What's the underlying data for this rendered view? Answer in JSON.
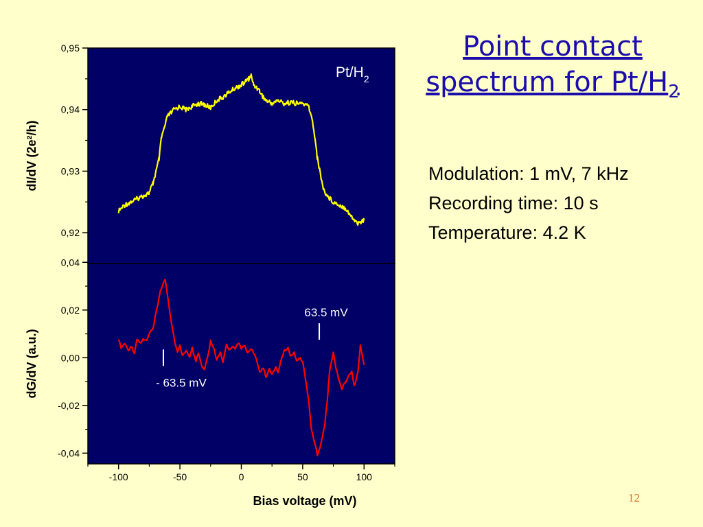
{
  "slide": {
    "title_line1": "Point contact",
    "title_line2_main": "spectrum for Pt/H",
    "title_line2_sub": "2",
    "info_lines": [
      "Modulation: 1 mV, 7 kHz",
      "Recording time: 10 s",
      "Temperature: 4.2 K"
    ],
    "page_number": "12"
  },
  "colors": {
    "slide_background": "#ffffcc",
    "plot_background": "#000066",
    "title": "#1a0dab",
    "upper_trace": "#ffff00",
    "lower_trace": "#ff0000",
    "page_number": "#e07020"
  },
  "chart_data": [
    {
      "type": "line",
      "panel": "upper",
      "annotation_main": "Pt/H",
      "annotation_sub": "2",
      "ylabel": "dI/dV (2e²/h)",
      "ylim": [
        0.915,
        0.95
      ],
      "yticks": [
        "0,92",
        "0,93",
        "0,94",
        "0,95"
      ],
      "ytick_values": [
        0.92,
        0.93,
        0.94,
        0.95
      ],
      "xlim": [
        -125,
        125
      ],
      "series": [
        {
          "color": "#ffff00",
          "x": [
            -100,
            -95,
            -90,
            -85,
            -80,
            -75,
            -72,
            -70,
            -67,
            -65,
            -62,
            -60,
            -57,
            -55,
            -50,
            -45,
            -40,
            -35,
            -30,
            -25,
            -20,
            -15,
            -10,
            -5,
            0,
            3,
            6,
            8,
            10,
            13,
            15,
            18,
            20,
            25,
            30,
            35,
            40,
            45,
            50,
            55,
            58,
            60,
            62,
            65,
            67,
            70,
            75,
            80,
            85,
            90,
            95,
            100
          ],
          "values": [
            0.9235,
            0.9245,
            0.925,
            0.9255,
            0.926,
            0.9265,
            0.928,
            0.9295,
            0.932,
            0.9355,
            0.9375,
            0.939,
            0.9395,
            0.94,
            0.9405,
            0.94,
            0.9405,
            0.941,
            0.9408,
            0.9403,
            0.9415,
            0.942,
            0.9428,
            0.9435,
            0.944,
            0.9445,
            0.945,
            0.9455,
            0.944,
            0.9435,
            0.943,
            0.942,
            0.9415,
            0.941,
            0.9415,
            0.941,
            0.9412,
            0.941,
            0.941,
            0.9405,
            0.938,
            0.9355,
            0.932,
            0.929,
            0.927,
            0.926,
            0.925,
            0.9245,
            0.924,
            0.9225,
            0.9215,
            0.922
          ]
        }
      ]
    },
    {
      "type": "line",
      "panel": "lower",
      "ylabel": "dG/dV (a.u.)",
      "xlabel": "Bias voltage (mV)",
      "ylim": [
        -0.0445,
        0.0395
      ],
      "yticks": [
        "-0,04",
        "-0,02",
        "0,00",
        "0,02",
        "0,04"
      ],
      "ytick_values": [
        -0.04,
        -0.02,
        0.0,
        0.02,
        0.04
      ],
      "xlim": [
        -125,
        125
      ],
      "xticks": [
        "-100",
        "-50",
        "0",
        "50",
        "100"
      ],
      "xtick_values": [
        -100,
        -50,
        0,
        50,
        100
      ],
      "annotations": [
        {
          "text": "- 63.5 mV",
          "x": -63.5,
          "y": -0.0025,
          "marker_y": 0.0
        },
        {
          "text": "63.5 mV",
          "x": 63.5,
          "y": 0.0165,
          "marker_y": 0.011
        }
      ],
      "series": [
        {
          "color": "#ff0000",
          "x": [
            -100,
            -98,
            -95,
            -92,
            -90,
            -87,
            -85,
            -82,
            -80,
            -77,
            -75,
            -72,
            -70,
            -68,
            -66,
            -64,
            -62,
            -60,
            -58,
            -56,
            -54,
            -52,
            -50,
            -48,
            -45,
            -42,
            -40,
            -37,
            -35,
            -32,
            -30,
            -27,
            -25,
            -22,
            -20,
            -17,
            -15,
            -12,
            -10,
            -7,
            -5,
            -2,
            0,
            3,
            5,
            8,
            10,
            13,
            15,
            18,
            20,
            23,
            25,
            28,
            30,
            33,
            35,
            38,
            40,
            43,
            45,
            48,
            50,
            52,
            55,
            57,
            60,
            62,
            64,
            66,
            68,
            70,
            72,
            75,
            77,
            80,
            82,
            85,
            87,
            90,
            92,
            95,
            97,
            100
          ],
          "values": [
            0.008,
            0.004,
            0.006,
            0.003,
            0.005,
            0.002,
            0.008,
            0.006,
            0.008,
            0.007,
            0.01,
            0.012,
            0.018,
            0.022,
            0.028,
            0.031,
            0.033,
            0.026,
            0.018,
            0.012,
            0.006,
            0.002,
            0.005,
            0.001,
            0.003,
            0.0,
            0.004,
            -0.002,
            0.002,
            -0.004,
            -0.005,
            0.001,
            0.007,
            0.003,
            -0.001,
            0.002,
            -0.002,
            0.006,
            0.003,
            0.005,
            0.004,
            0.006,
            0.004,
            0.005,
            0.002,
            0.004,
            0.002,
            -0.002,
            -0.006,
            -0.004,
            -0.008,
            -0.005,
            -0.007,
            -0.004,
            -0.006,
            0.0,
            0.003,
            0.004,
            0.001,
            0.002,
            -0.001,
            0.0,
            -0.002,
            -0.008,
            -0.018,
            -0.03,
            -0.036,
            -0.041,
            -0.038,
            -0.033,
            -0.028,
            -0.018,
            -0.005,
            0.002,
            -0.004,
            -0.01,
            -0.013,
            -0.01,
            -0.008,
            -0.006,
            -0.012,
            -0.006,
            0.005,
            -0.003
          ]
        }
      ]
    }
  ]
}
